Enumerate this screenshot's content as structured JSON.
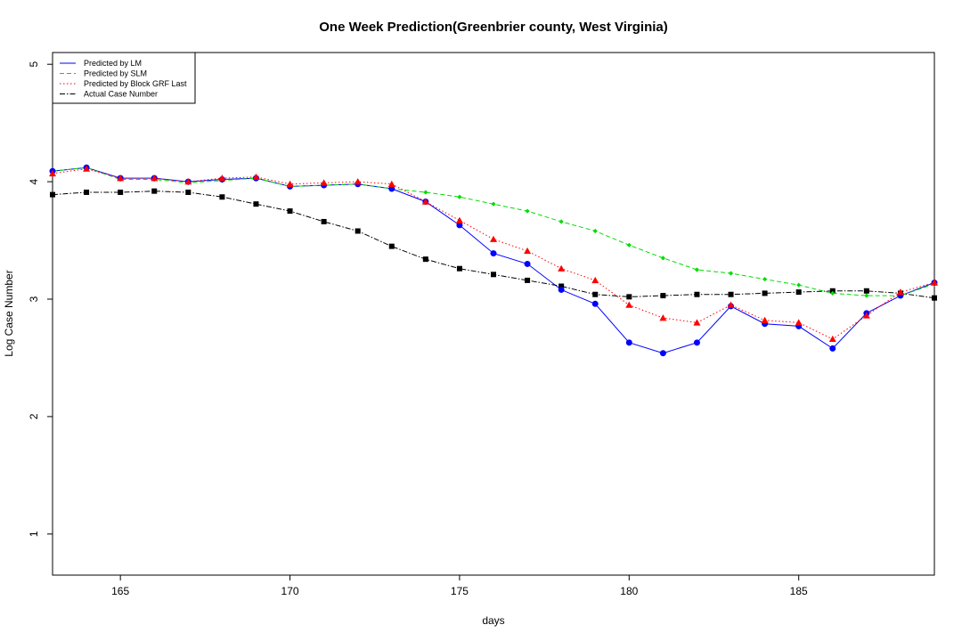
{
  "chart_data": {
    "type": "line",
    "title": "One Week Prediction(Greenbrier county, West Virginia)",
    "xlabel": "days",
    "ylabel": "Log Case Number",
    "xlim": [
      163,
      189
    ],
    "ylim": [
      0.65,
      5.1
    ],
    "xticks": [
      165,
      170,
      175,
      180,
      185
    ],
    "yticks": [
      1,
      2,
      3,
      4,
      5
    ],
    "grid": false,
    "legend_position": "top-left",
    "x": [
      163,
      164,
      165,
      166,
      167,
      168,
      169,
      170,
      171,
      172,
      173,
      174,
      175,
      176,
      177,
      178,
      179,
      180,
      181,
      182,
      183,
      184,
      185,
      186,
      187,
      188,
      189
    ],
    "series": [
      {
        "name": "Predicted by LM",
        "color": "#0000ff",
        "line_style": "solid",
        "marker": "circle",
        "values": [
          4.09,
          4.12,
          4.03,
          4.03,
          4.0,
          4.02,
          4.03,
          3.96,
          3.97,
          3.98,
          3.94,
          3.83,
          3.63,
          3.39,
          3.3,
          3.08,
          2.96,
          2.63,
          2.54,
          2.63,
          2.94,
          2.79,
          2.77,
          2.58,
          2.88,
          3.03,
          3.14
        ]
      },
      {
        "name": "Predicted by SLM",
        "color": "#00dd00",
        "line_style": "dashed",
        "marker": "diamond",
        "values": [
          4.09,
          4.12,
          4.02,
          4.02,
          3.99,
          4.01,
          4.03,
          3.96,
          3.97,
          3.98,
          3.94,
          3.91,
          3.87,
          3.81,
          3.75,
          3.66,
          3.58,
          3.46,
          3.35,
          3.25,
          3.22,
          3.17,
          3.12,
          3.05,
          3.03,
          3.03,
          3.13
        ]
      },
      {
        "name": "Predicted by Block GRF Last",
        "color": "#ff0000",
        "line_style": "dotted",
        "marker": "triangle",
        "values": [
          4.07,
          4.11,
          4.03,
          4.03,
          4.0,
          4.03,
          4.04,
          3.98,
          3.99,
          4.0,
          3.98,
          3.83,
          3.67,
          3.51,
          3.41,
          3.26,
          3.16,
          2.95,
          2.84,
          2.8,
          2.95,
          2.82,
          2.8,
          2.66,
          2.86,
          3.06,
          3.14
        ]
      },
      {
        "name": "Actual Case Number",
        "color": "#000000",
        "line_style": "dashdot",
        "marker": "square",
        "values": [
          3.89,
          3.91,
          3.91,
          3.92,
          3.91,
          3.87,
          3.81,
          3.75,
          3.66,
          3.58,
          3.45,
          3.34,
          3.26,
          3.21,
          3.16,
          3.11,
          3.04,
          3.02,
          3.03,
          3.04,
          3.04,
          3.05,
          3.06,
          3.07,
          3.07,
          3.05,
          3.01
        ]
      }
    ]
  }
}
